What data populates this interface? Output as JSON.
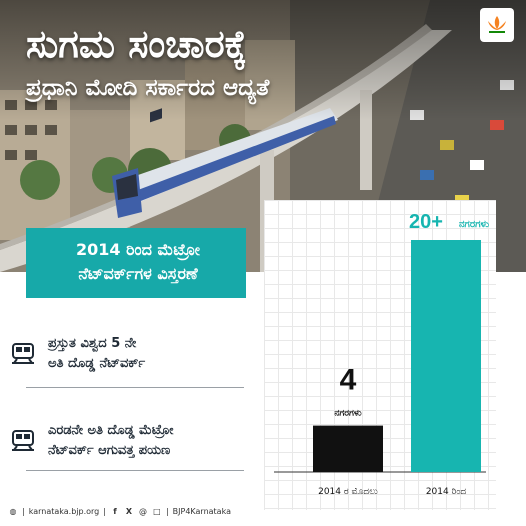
{
  "headline": "ಸುಗಮ ಸಂಚಾರಕ್ಕೆ",
  "subheadline": "ಪ್ರಧಾನಿ ಮೋದಿ ಸರ್ಕಾರದ ಆದ್ಯತೆ",
  "logo": {
    "icon": "bjp-lotus-icon"
  },
  "title_box": {
    "line1": "2014 ರಿಂದ ಮೆಟ್ರೋ",
    "line2": "ನೆಟ್‌ವರ್ಕ್‌ಗಳ ವಿಸ್ತರಣೆ",
    "color": "#17a9a9"
  },
  "points": [
    {
      "icon": "metro-train-icon",
      "line1": "ಪ್ರಸ್ತುತ ವಿಶ್ವದ 5 ನೇ",
      "line2": "ಅತಿ ದೊಡ್ಡ ನೆಟ್‌ವರ್ಕ್"
    },
    {
      "icon": "metro-train-icon",
      "line1": "ಎರಡನೇ ಅತಿ ದೊಡ್ಡ ಮೆಟ್ರೋ",
      "line2": "ನೆಟ್‌ವರ್ಕ್ ಆಗುವತ್ತ ಪಯಣ"
    }
  ],
  "chart_data": {
    "type": "bar",
    "categories": [
      "2014 ರ ಮೊದಲು",
      "2014 ರಿಂದ"
    ],
    "values": [
      4,
      20
    ],
    "data_labels": [
      {
        "value": "4",
        "unit": "ನಗರಗಳು"
      },
      {
        "value": "20+",
        "unit": "ನಗರಗಳು"
      }
    ],
    "colors": [
      "#111111",
      "#17b5b0"
    ],
    "ylim": [
      0,
      20
    ],
    "grid": true
  },
  "footer": {
    "website": "karnataka.bjp.org",
    "handle": "BJP4Karnataka",
    "icons": [
      "globe-icon",
      "facebook-icon",
      "x-icon",
      "threads-icon",
      "instagram-icon"
    ]
  }
}
